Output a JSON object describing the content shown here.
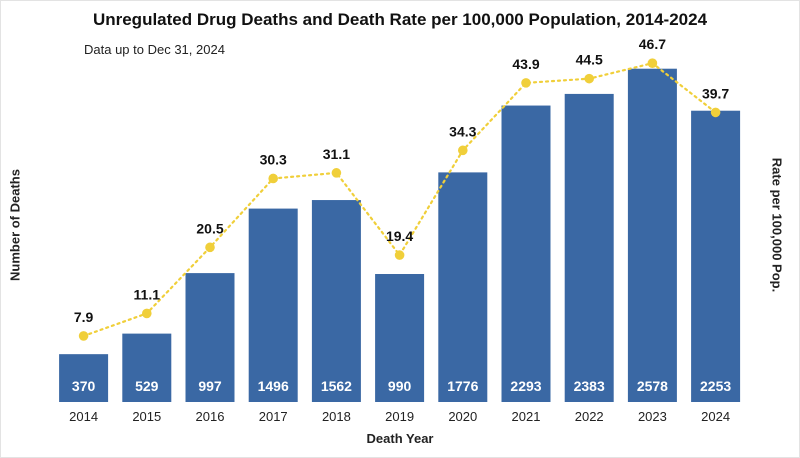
{
  "chart_data": {
    "type": "bar",
    "title": "Unregulated Drug Deaths and Death Rate per 100,000 Population, 2014-2024",
    "subtitle": "Data up to Dec 31, 2024",
    "xlabel": "Death Year",
    "ylabel": "Number of Deaths",
    "ylabel_right": "Rate per 100,000 Pop.",
    "categories": [
      "2014",
      "2015",
      "2016",
      "2017",
      "2018",
      "2019",
      "2020",
      "2021",
      "2022",
      "2023",
      "2024"
    ],
    "series": [
      {
        "kind": "bar",
        "axis": "left",
        "color": "#3a68a4",
        "values": [
          370,
          529,
          997,
          1496,
          1562,
          990,
          1776,
          2293,
          2383,
          2578,
          2253
        ]
      },
      {
        "kind": "line",
        "axis": "right",
        "style": "dotted",
        "color": "#f0cf3a",
        "values": [
          7.9,
          11.1,
          20.5,
          30.3,
          31.1,
          19.4,
          34.3,
          43.9,
          44.5,
          46.7,
          39.7
        ]
      }
    ],
    "ylim": [
      0,
      2800
    ],
    "ylim_right": [
      -1.5,
      50
    ],
    "grid": false,
    "legend": "none"
  }
}
